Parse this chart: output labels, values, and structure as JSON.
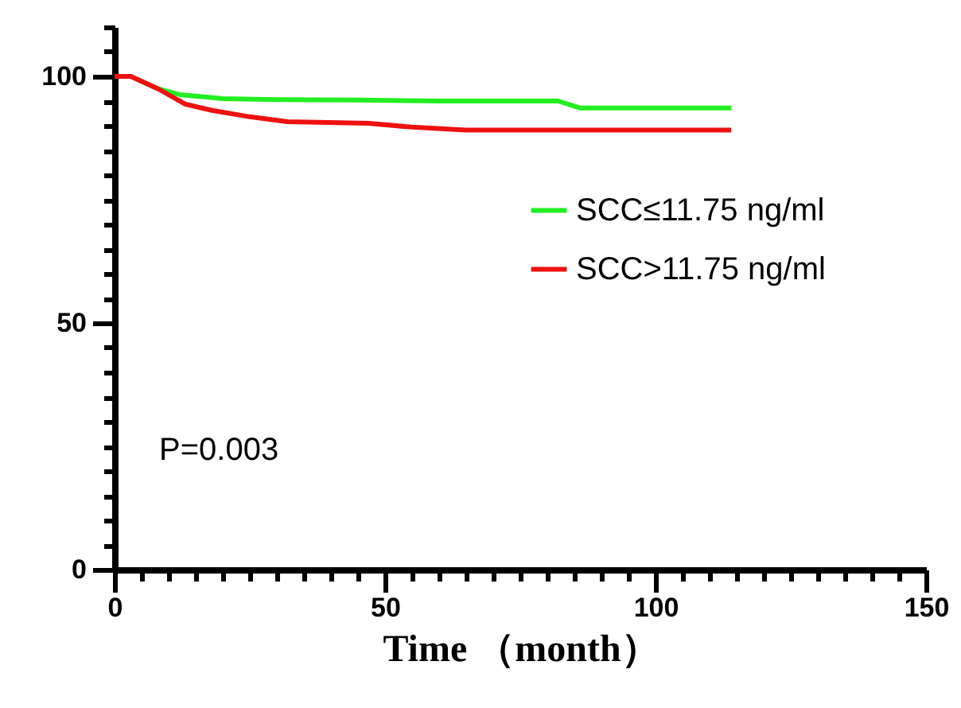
{
  "chart_data": {
    "type": "line",
    "xlabel": "Time （month）",
    "xlim": [
      0,
      150
    ],
    "ylim": [
      0,
      110
    ],
    "xticks": [
      0,
      {
        "value": 5,
        "label": null
      },
      {
        "value": 10,
        "label": null
      },
      {
        "value": 15,
        "label": null
      },
      {
        "value": 20,
        "label": null
      },
      {
        "value": 25,
        "label": null
      },
      {
        "value": 30,
        "label": null
      },
      {
        "value": 35,
        "label": null
      },
      {
        "value": 40,
        "label": null
      },
      {
        "value": 45,
        "label": null
      },
      50,
      {
        "value": 55,
        "label": null
      },
      {
        "value": 60,
        "label": null
      },
      {
        "value": 65,
        "label": null
      },
      {
        "value": 70,
        "label": null
      },
      {
        "value": 75,
        "label": null
      },
      {
        "value": 80,
        "label": null
      },
      {
        "value": 85,
        "label": null
      },
      {
        "value": 90,
        "label": null
      },
      {
        "value": 95,
        "label": null
      },
      100,
      {
        "value": 105,
        "label": null
      },
      {
        "value": 110,
        "label": null
      },
      {
        "value": 115,
        "label": null
      },
      {
        "value": 120,
        "label": null
      },
      {
        "value": 125,
        "label": null
      },
      {
        "value": 130,
        "label": null
      },
      {
        "value": 135,
        "label": null
      },
      {
        "value": 140,
        "label": null
      },
      {
        "value": 145,
        "label": null
      },
      150
    ],
    "yticks": [
      0,
      {
        "value": 5,
        "label": null
      },
      {
        "value": 10,
        "label": null
      },
      {
        "value": 15,
        "label": null
      },
      {
        "value": 20,
        "label": null
      },
      {
        "value": 25,
        "label": null
      },
      {
        "value": 30,
        "label": null
      },
      {
        "value": 35,
        "label": null
      },
      {
        "value": 40,
        "label": null
      },
      {
        "value": 45,
        "label": null
      },
      50,
      {
        "value": 55,
        "label": null
      },
      {
        "value": 60,
        "label": null
      },
      {
        "value": 65,
        "label": null
      },
      {
        "value": 70,
        "label": null
      },
      {
        "value": 75,
        "label": null
      },
      {
        "value": 80,
        "label": null
      },
      {
        "value": 85,
        "label": null
      },
      {
        "value": 90,
        "label": null
      },
      {
        "value": 95,
        "label": null
      },
      100,
      {
        "value": 105,
        "label": null
      },
      {
        "value": 110,
        "label": null
      }
    ],
    "series": [
      {
        "name": "SCC≤11.75 ng/ml",
        "color": "#22ee22",
        "x": [
          0,
          3,
          8,
          12,
          20,
          30,
          45,
          60,
          82,
          86,
          114
        ],
        "values": [
          100,
          100,
          97.5,
          96.3,
          95.5,
          95.3,
          95.2,
          95,
          95,
          93.6,
          93.6
        ]
      },
      {
        "name": "SCC>11.75 ng/ml",
        "color": "#ee1111",
        "x": [
          0,
          3,
          8,
          13,
          18,
          25,
          32,
          47,
          55,
          65,
          114
        ],
        "values": [
          100,
          100,
          97.5,
          94.4,
          93.1,
          91.8,
          90.8,
          90.5,
          89.7,
          89.1,
          89.1
        ]
      }
    ],
    "legend": "right",
    "grid": false,
    "marker": "none",
    "line_style": "solid",
    "annotations": [
      "P=0.003"
    ]
  }
}
